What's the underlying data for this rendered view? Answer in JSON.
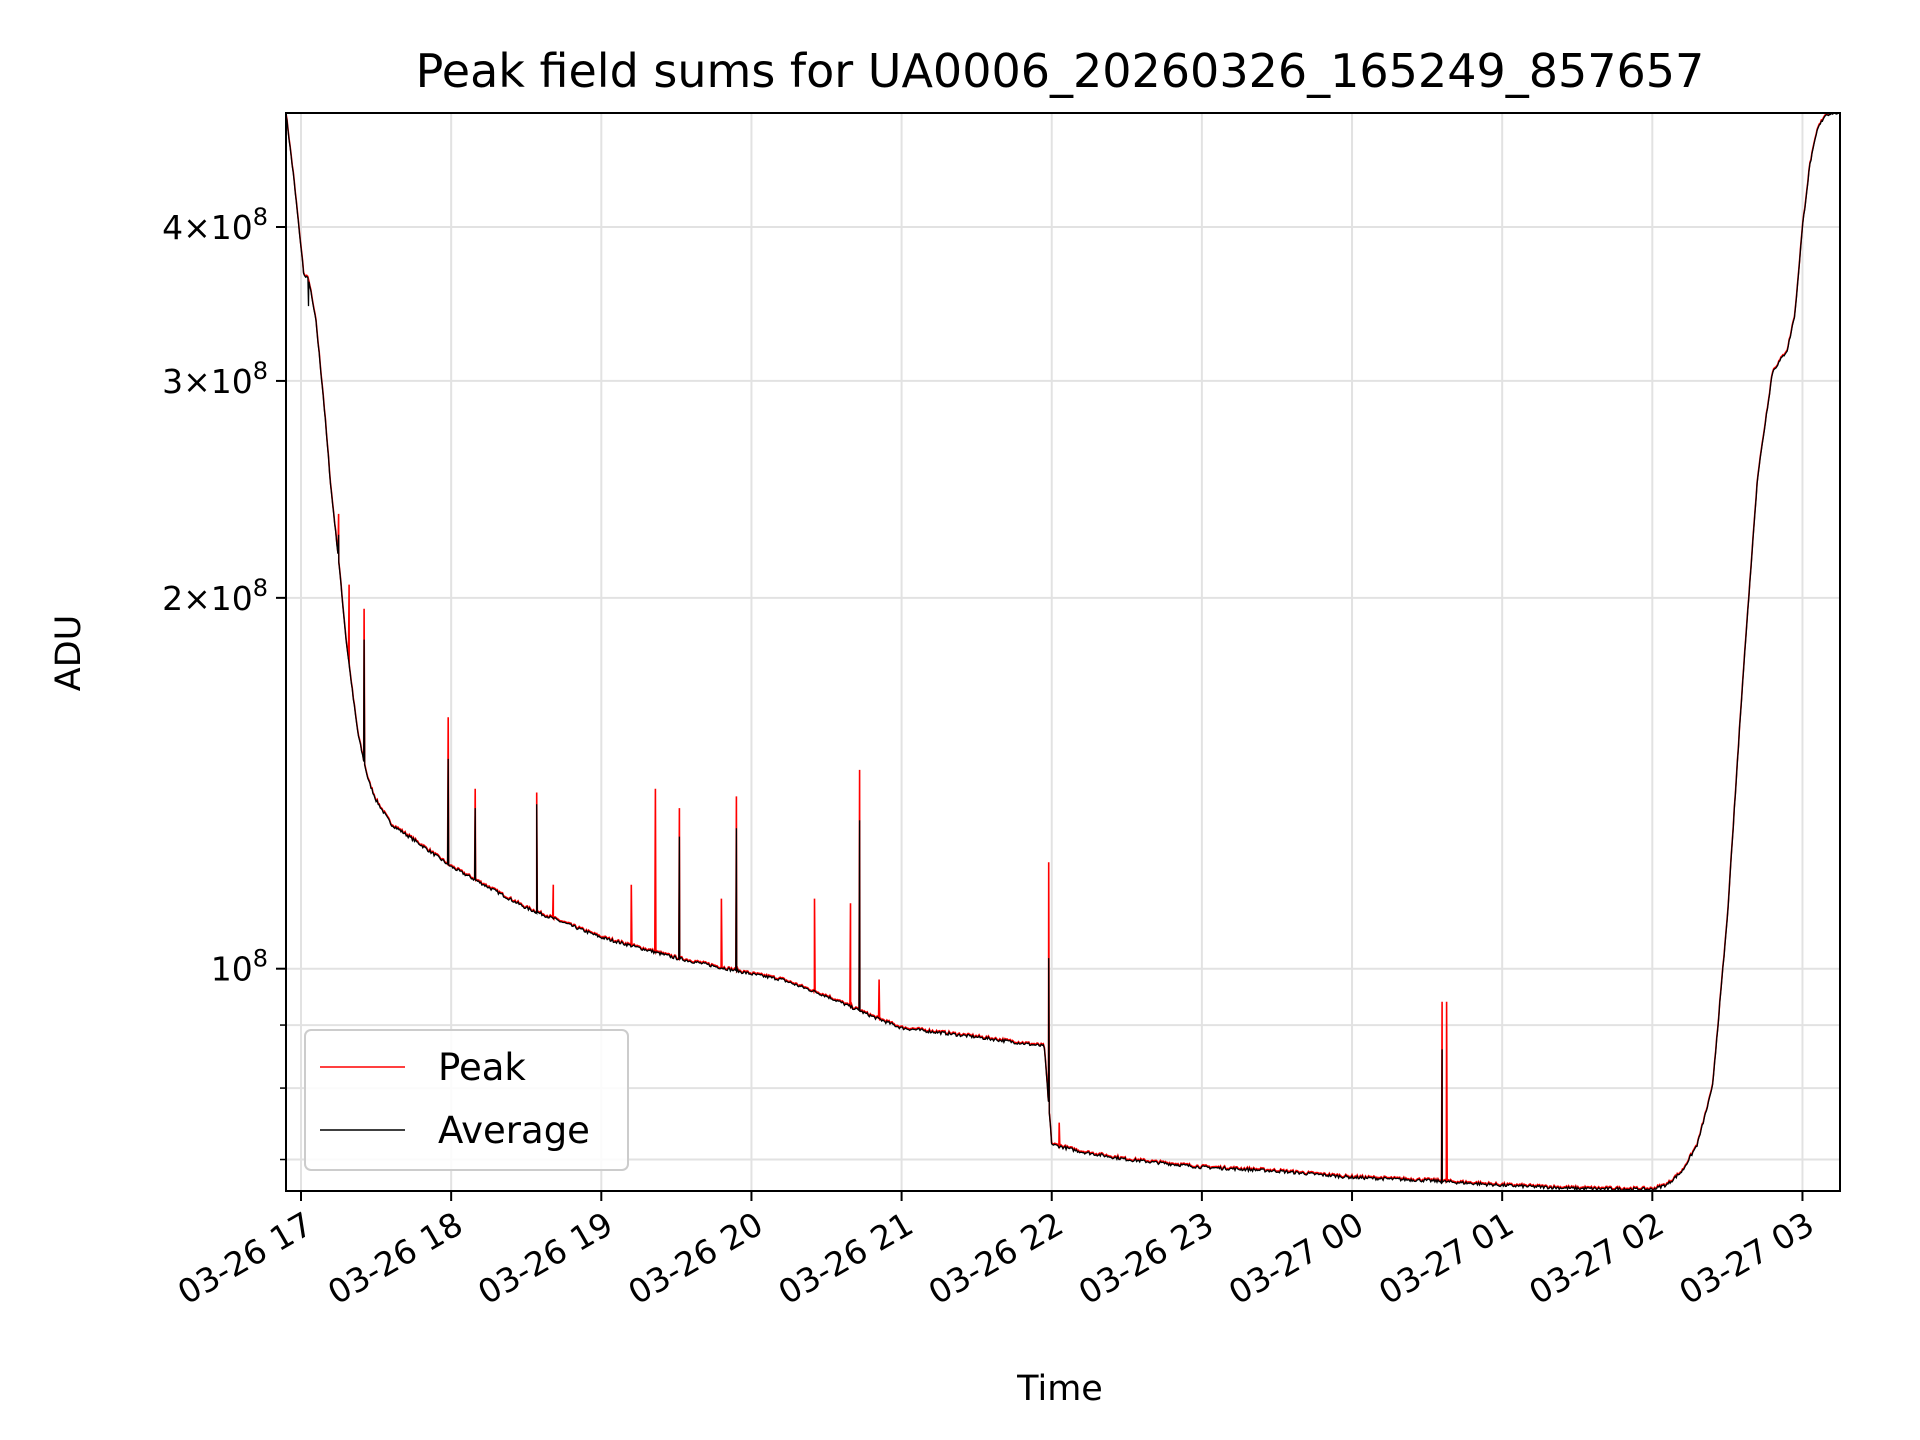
{
  "chart_data": {
    "type": "line",
    "title": "Peak field sums for UA0006_20260326_165249_857657",
    "xlabel": "Time",
    "ylabel": "ADU",
    "yscale": "log",
    "ylim": [
      66000000,
      495000000
    ],
    "xlim_hours": [
      -0.1,
      10.25
    ],
    "grid": true,
    "legend_location": "lower left",
    "x_tick_labels": [
      "03-26 17",
      "03-26 18",
      "03-26 19",
      "03-26 20",
      "03-26 21",
      "03-26 22",
      "03-26 23",
      "03-27 00",
      "03-27 01",
      "03-27 02",
      "03-27 03"
    ],
    "x_tick_hours": [
      0,
      1,
      2,
      3,
      4,
      5,
      6,
      7,
      8,
      9,
      10
    ],
    "y_major_ticks": [
      {
        "value": 100000000,
        "mantissa": "",
        "exponent": "8"
      },
      {
        "value": 200000000,
        "mantissa": "2",
        "exponent": "8"
      },
      {
        "value": 300000000,
        "mantissa": "3",
        "exponent": "8"
      },
      {
        "value": 400000000,
        "mantissa": "4",
        "exponent": "8"
      }
    ],
    "y_minor_ticks": [
      70000000,
      80000000,
      90000000
    ],
    "base_x_hours": [
      -0.1,
      -0.05,
      0.02,
      0.05,
      0.1,
      0.15,
      0.2,
      0.25,
      0.3,
      0.35,
      0.38,
      0.42,
      0.45,
      0.5,
      0.6,
      0.8,
      1.0,
      1.5,
      2.0,
      2.5,
      3.0,
      3.2,
      3.5,
      3.8,
      4.0,
      4.5,
      4.95,
      5.0,
      5.2,
      5.5,
      6.0,
      6.5,
      7.0,
      7.5,
      8.0,
      8.5,
      9.0,
      9.1,
      9.2,
      9.3,
      9.4,
      9.5,
      9.6,
      9.7,
      9.8,
      9.9,
      9.95,
      10.0,
      10.05,
      10.1,
      10.15,
      10.2
    ],
    "base_y": [
      495000000,
      440000000,
      365000000,
      363000000,
      335000000,
      290000000,
      245000000,
      215000000,
      185000000,
      165000000,
      155000000,
      147000000,
      142000000,
      137000000,
      131000000,
      126000000,
      121000000,
      112000000,
      106000000,
      102000000,
      99000000,
      98000000,
      95000000,
      91500000,
      89500000,
      88000000,
      86500000,
      72000000,
      71000000,
      70000000,
      69000000,
      68500000,
      67700000,
      67300000,
      66700000,
      66300000,
      66200000,
      66800000,
      68500000,
      72000000,
      80000000,
      110000000,
      170000000,
      250000000,
      305000000,
      318000000,
      340000000,
      400000000,
      450000000,
      480000000,
      493000000,
      495000000
    ],
    "series": [
      {
        "name": "Peak",
        "color": "#ff0000",
        "spikes": [
          {
            "x": 0.25,
            "value": 234000000
          },
          {
            "x": 0.32,
            "value": 205000000
          },
          {
            "x": 0.42,
            "value": 196000000
          },
          {
            "x": 0.98,
            "value": 160000000
          },
          {
            "x": 1.16,
            "value": 140000000
          },
          {
            "x": 1.57,
            "value": 139000000
          },
          {
            "x": 1.68,
            "value": 117000000
          },
          {
            "x": 2.2,
            "value": 117000000
          },
          {
            "x": 2.36,
            "value": 140000000
          },
          {
            "x": 2.52,
            "value": 135000000
          },
          {
            "x": 2.8,
            "value": 114000000
          },
          {
            "x": 2.9,
            "value": 138000000
          },
          {
            "x": 3.42,
            "value": 114000000
          },
          {
            "x": 3.66,
            "value": 113000000
          },
          {
            "x": 3.72,
            "value": 145000000
          },
          {
            "x": 3.85,
            "value": 98000000
          },
          {
            "x": 4.98,
            "value": 122000000
          },
          {
            "x": 5.05,
            "value": 75000000
          },
          {
            "x": 7.6,
            "value": 94000000
          },
          {
            "x": 7.63,
            "value": 94000000
          }
        ]
      },
      {
        "name": "Average",
        "color": "#000000",
        "spikes": [
          {
            "x": 0.05,
            "value": 345000000
          },
          {
            "x": 0.25,
            "value": 225000000
          },
          {
            "x": 0.42,
            "value": 185000000
          },
          {
            "x": 0.98,
            "value": 148000000
          },
          {
            "x": 1.16,
            "value": 135000000
          },
          {
            "x": 1.57,
            "value": 136000000
          },
          {
            "x": 2.52,
            "value": 128000000
          },
          {
            "x": 2.9,
            "value": 130000000
          },
          {
            "x": 3.72,
            "value": 132000000
          },
          {
            "x": 4.98,
            "value": 102000000
          },
          {
            "x": 7.6,
            "value": 86000000
          }
        ]
      }
    ]
  }
}
